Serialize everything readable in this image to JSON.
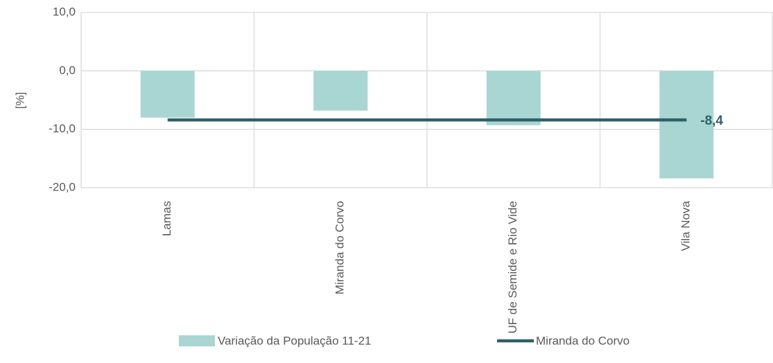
{
  "chart_data": {
    "type": "bar-line",
    "y_label": "[%]",
    "categories": [
      "Lamas",
      "Miranda do Corvo",
      "UF de Semide e Rio Vide",
      "Vila Nova"
    ],
    "series": [
      {
        "name": "Variação da População 11-21",
        "type": "bar",
        "color": "#a9d6d2",
        "values": [
          -8.0,
          -6.8,
          -9.3,
          -18.4
        ]
      },
      {
        "name": "Miranda do Corvo",
        "type": "line",
        "color": "#30606a",
        "values": [
          -8.4,
          -8.4,
          -8.4,
          -8.4
        ],
        "value_labels": [
          null,
          null,
          null,
          "-8,4"
        ]
      }
    ],
    "ylim": [
      -20,
      10
    ],
    "yticks": [
      {
        "value": -20,
        "label": "-20,0"
      },
      {
        "value": -10,
        "label": "-10,0"
      },
      {
        "value": 0,
        "label": "0,0"
      },
      {
        "value": 10,
        "label": "10,0"
      }
    ],
    "grid": true,
    "legend": "bottom"
  }
}
